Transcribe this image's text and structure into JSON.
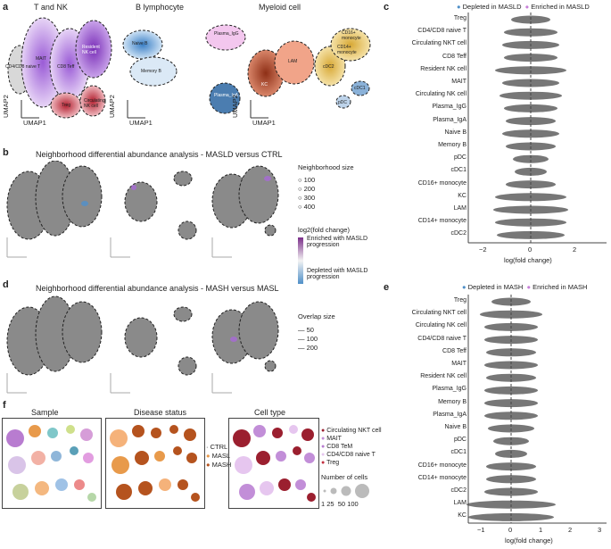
{
  "panel_a": {
    "letter": "a",
    "groups": [
      "T and NK",
      "B lymphocyte",
      "Myeloid cell"
    ],
    "clusters": [
      "CD4/CD8 naive T",
      "MAIT",
      "CD8 Teff",
      "Resident NK cell",
      "Treg",
      "Circulating NK cell",
      "Naive B",
      "Memory B",
      "Plasma_IgG",
      "Plasma_IgA",
      "pDC",
      "LAM",
      "KC",
      "cDC1",
      "cDC2",
      "CD16+ monocyte",
      "CD14+ monocyte"
    ],
    "axis_x": "UMAP1",
    "axis_y": "UMAP2"
  },
  "panel_b": {
    "letter": "b",
    "title": "Neighborhood differential abundance analysis - MASLD versus CTRL",
    "legend_title": "Neighborhood size",
    "sizes": [
      "100",
      "200",
      "300",
      "400"
    ],
    "fc_title": "log2(fold change)",
    "enriched": "Enriched with MASLD progression",
    "depleted": "Depleted with MASLD progression"
  },
  "panel_d": {
    "letter": "d",
    "title": "Neighborhood differential abundance analysis - MASH versus MASL",
    "legend_title": "Overlap size",
    "sizes": [
      "50",
      "100",
      "200"
    ]
  },
  "panel_f": {
    "letter": "f",
    "titles": [
      "Sample",
      "Disease status",
      "Cell type"
    ],
    "status": [
      "CTRL",
      "MASL",
      "MASH"
    ],
    "celltypes": [
      "Circulating NKT cell",
      "MAIT",
      "CD8 TeM",
      "CD4/CD8 naive T",
      "Treg"
    ],
    "cells_title": "Number of cells",
    "cells_ticks": "1 25  50 100"
  },
  "panel_c": {
    "letter": "c",
    "legend_dep": "Depleted in MASLD",
    "legend_enr": "Enriched in MASLD",
    "xlabel": "log(fold change)",
    "ticks": [
      "−2",
      "0",
      "2"
    ],
    "rows": [
      "Treg",
      "CD4/CD8 naive T",
      "Circulating NKT cell",
      "CD8 Teff",
      "Resident NK cell",
      "MAIT",
      "Circulating NK cell",
      "Plasma_IgG",
      "Plasma_IgA",
      "Naive B",
      "Memory B",
      "pDC",
      "cDC1",
      "CD16+ monocyte",
      "KC",
      "LAM",
      "CD14+ monocyte",
      "cDC2"
    ]
  },
  "panel_e": {
    "letter": "e",
    "legend_dep": "Depleted in MASH",
    "legend_enr": "Enriched in MASH",
    "xlabel": "log(fold change)",
    "ticks": [
      "−1",
      "0",
      "1",
      "2",
      "3"
    ],
    "rows": [
      "Treg",
      "Circulating NKT cell",
      "Circulating NK cell",
      "CD4/CD8 naive T",
      "CD8 Teff",
      "MAIT",
      "Resident NK cell",
      "Plasma_IgG",
      "Memory B",
      "Plasma_IgA",
      "Naive B",
      "pDC",
      "cDC1",
      "CD16+ monocyte",
      "CD14+ monocyte",
      "cDC2",
      "LAM",
      "KC"
    ]
  },
  "colors": {
    "depleted": "#4f8fc8",
    "enriched": "#c77fd8",
    "grey": "#777777",
    "tnk": "#b48be0",
    "myeloid": "#a9452a"
  }
}
